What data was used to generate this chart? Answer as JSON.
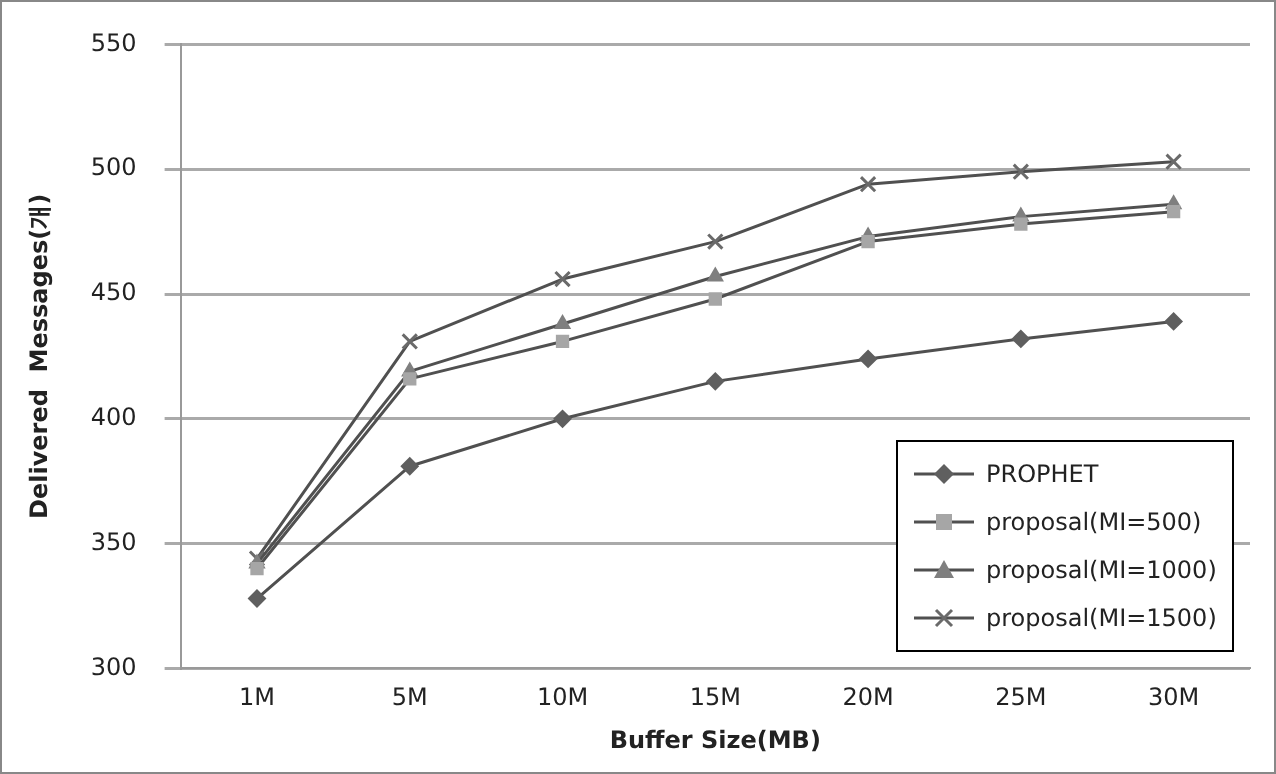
{
  "chart_data": {
    "type": "line",
    "xlabel": "Buffer Size(MB)",
    "ylabel": "Delivered  Messages(개)",
    "categories": [
      "1M",
      "5M",
      "10M",
      "15M",
      "20M",
      "25M",
      "30M"
    ],
    "series": [
      {
        "name": "PROPHET",
        "color": "#5f5f5f",
        "marker": "diamond",
        "values": [
          328,
          381,
          400,
          415,
          424,
          432,
          439
        ]
      },
      {
        "name": "proposal(MI=500)",
        "color": "#a6a6a6",
        "marker": "square",
        "values": [
          340,
          416,
          431,
          448,
          471,
          478,
          483
        ]
      },
      {
        "name": "proposal(MI=1000)",
        "color": "#7f7f7f",
        "marker": "triangle",
        "values": [
          342,
          419,
          438,
          457,
          473,
          481,
          486
        ]
      },
      {
        "name": "proposal(MI=1500)",
        "color": "#6a6a6a",
        "marker": "cross",
        "values": [
          344,
          431,
          456,
          471,
          494,
          499,
          503
        ]
      }
    ],
    "ylim": [
      300,
      550
    ],
    "yticks": [
      300,
      350,
      400,
      450,
      500,
      550
    ],
    "grid": "y",
    "legend": "bottom right"
  }
}
